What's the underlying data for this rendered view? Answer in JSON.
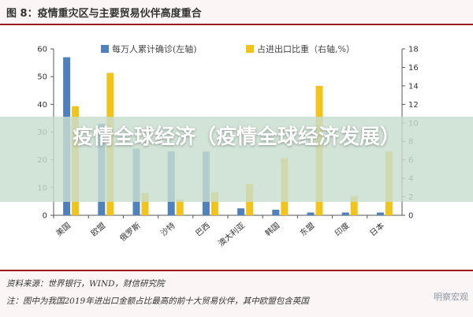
{
  "figure": {
    "title": "图 8：疫情重灾区与主要贸易伙伴高度重合",
    "source": "资料来源：世界银行，WIND，财信研究院",
    "note": "注：图中为我国2019年进出口金额占比最高的前十大贸易伙伴，其中欧盟包含英国"
  },
  "overlay": {
    "text": "疫情全球经济（疫情全球经济发展）"
  },
  "watermark": "明察宏观",
  "colors": {
    "cases": "#4f81bd",
    "share": "#f2c318",
    "frame": "#9a1c1c"
  },
  "chart_data": {
    "type": "bar",
    "categories": [
      "美国",
      "欧盟",
      "俄罗斯",
      "沙特",
      "巴西",
      "澳大利亚",
      "韩国",
      "东盟",
      "印度",
      "日本"
    ],
    "series": [
      {
        "name": "每万人累计确诊(左轴)",
        "axis": "left",
        "values": [
          57,
          33,
          24,
          23,
          23,
          2.5,
          2,
          1,
          1,
          1
        ]
      },
      {
        "name": "占进出口比重（右轴,%）",
        "axis": "right",
        "values": [
          11.8,
          15.4,
          2.4,
          1.7,
          2.5,
          3.4,
          6.2,
          14.0,
          2.1,
          6.9
        ]
      }
    ],
    "ylim_left": [
      0,
      60
    ],
    "ylim_right": [
      0,
      18
    ],
    "yticks_left": [
      "0",
      "10",
      "20",
      "30",
      "40",
      "50",
      "60"
    ],
    "yticks_right": [
      "0",
      "2",
      "4",
      "6",
      "8",
      "10",
      "12",
      "14",
      "16",
      "18"
    ],
    "legend": "top",
    "grid": false
  }
}
